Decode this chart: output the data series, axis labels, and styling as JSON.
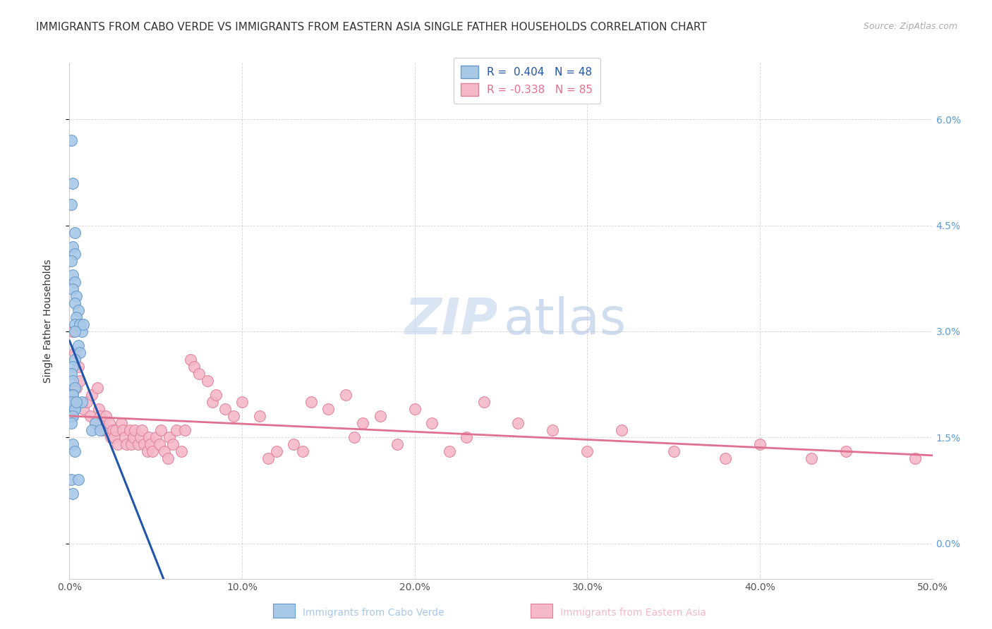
{
  "title": "IMMIGRANTS FROM CABO VERDE VS IMMIGRANTS FROM EASTERN ASIA SINGLE FATHER HOUSEHOLDS CORRELATION CHART",
  "source": "Source: ZipAtlas.com",
  "ylabel": "Single Father Households",
  "xlim": [
    0.0,
    0.5
  ],
  "ylim": [
    -0.005,
    0.068
  ],
  "cabo_verde_color": "#a8c8e8",
  "cabo_verde_edge": "#6699cc",
  "eastern_asia_color": "#f4b8c8",
  "eastern_asia_edge": "#e0809a",
  "cabo_verde_R": 0.404,
  "cabo_verde_N": 48,
  "eastern_asia_R": -0.338,
  "eastern_asia_N": 85,
  "cabo_verde_line_color": "#2255aa",
  "eastern_asia_line_color": "#e07090",
  "watermark_zip_color": "#c0d4ec",
  "watermark_atlas_color": "#a0bce0",
  "background_color": "#ffffff",
  "grid_color": "#d0d0d0",
  "title_fontsize": 11,
  "label_fontsize": 10,
  "tick_fontsize": 10,
  "legend_fontsize": 11,
  "cabo_verde_x": [
    0.001,
    0.002,
    0.001,
    0.003,
    0.002,
    0.003,
    0.001,
    0.002,
    0.003,
    0.002,
    0.004,
    0.003,
    0.005,
    0.004,
    0.003,
    0.006,
    0.007,
    0.008,
    0.003,
    0.005,
    0.006,
    0.003,
    0.002,
    0.001,
    0.002,
    0.003,
    0.002,
    0.001,
    0.002,
    0.003,
    0.001,
    0.002,
    0.001,
    0.015,
    0.013,
    0.018,
    0.002,
    0.001,
    0.003,
    0.002,
    0.001,
    0.001,
    0.005,
    0.007,
    0.002,
    0.003,
    0.004,
    0.002
  ],
  "cabo_verde_y": [
    0.057,
    0.051,
    0.048,
    0.044,
    0.042,
    0.041,
    0.04,
    0.038,
    0.037,
    0.036,
    0.035,
    0.034,
    0.033,
    0.032,
    0.031,
    0.031,
    0.03,
    0.031,
    0.03,
    0.028,
    0.027,
    0.026,
    0.025,
    0.024,
    0.023,
    0.022,
    0.021,
    0.021,
    0.02,
    0.019,
    0.019,
    0.018,
    0.018,
    0.017,
    0.016,
    0.016,
    0.021,
    0.02,
    0.019,
    0.018,
    0.017,
    0.009,
    0.009,
    0.02,
    0.014,
    0.013,
    0.02,
    0.007
  ],
  "eastern_asia_x": [
    0.002,
    0.003,
    0.004,
    0.005,
    0.006,
    0.008,
    0.01,
    0.012,
    0.013,
    0.015,
    0.016,
    0.017,
    0.018,
    0.019,
    0.02,
    0.021,
    0.022,
    0.023,
    0.024,
    0.025,
    0.026,
    0.027,
    0.028,
    0.03,
    0.031,
    0.032,
    0.033,
    0.035,
    0.036,
    0.037,
    0.038,
    0.04,
    0.041,
    0.042,
    0.043,
    0.045,
    0.046,
    0.047,
    0.048,
    0.05,
    0.052,
    0.053,
    0.055,
    0.057,
    0.058,
    0.06,
    0.062,
    0.065,
    0.067,
    0.07,
    0.072,
    0.075,
    0.08,
    0.083,
    0.085,
    0.09,
    0.095,
    0.1,
    0.11,
    0.115,
    0.12,
    0.13,
    0.135,
    0.14,
    0.15,
    0.16,
    0.165,
    0.17,
    0.18,
    0.19,
    0.2,
    0.21,
    0.22,
    0.23,
    0.24,
    0.26,
    0.28,
    0.3,
    0.32,
    0.35,
    0.38,
    0.4,
    0.43,
    0.45,
    0.49
  ],
  "eastern_asia_y": [
    0.03,
    0.027,
    0.022,
    0.025,
    0.023,
    0.019,
    0.02,
    0.018,
    0.021,
    0.017,
    0.022,
    0.019,
    0.018,
    0.017,
    0.016,
    0.018,
    0.016,
    0.017,
    0.015,
    0.016,
    0.015,
    0.016,
    0.014,
    0.017,
    0.016,
    0.015,
    0.014,
    0.016,
    0.014,
    0.015,
    0.016,
    0.014,
    0.015,
    0.016,
    0.014,
    0.013,
    0.015,
    0.014,
    0.013,
    0.015,
    0.014,
    0.016,
    0.013,
    0.012,
    0.015,
    0.014,
    0.016,
    0.013,
    0.016,
    0.026,
    0.025,
    0.024,
    0.023,
    0.02,
    0.021,
    0.019,
    0.018,
    0.02,
    0.018,
    0.012,
    0.013,
    0.014,
    0.013,
    0.02,
    0.019,
    0.021,
    0.015,
    0.017,
    0.018,
    0.014,
    0.019,
    0.017,
    0.013,
    0.015,
    0.02,
    0.017,
    0.016,
    0.013,
    0.016,
    0.013,
    0.012,
    0.014,
    0.012,
    0.013,
    0.012
  ],
  "ytick_vals": [
    0.0,
    0.015,
    0.03,
    0.045,
    0.06
  ],
  "ytick_labels": [
    "0.0%",
    "1.5%",
    "3.0%",
    "4.5%",
    "6.0%"
  ],
  "xtick_vals": [
    0.0,
    0.1,
    0.2,
    0.3,
    0.4,
    0.5
  ],
  "xtick_labels": [
    "0.0%",
    "10.0%",
    "20.0%",
    "30.0%",
    "40.0%",
    "50.0%"
  ]
}
